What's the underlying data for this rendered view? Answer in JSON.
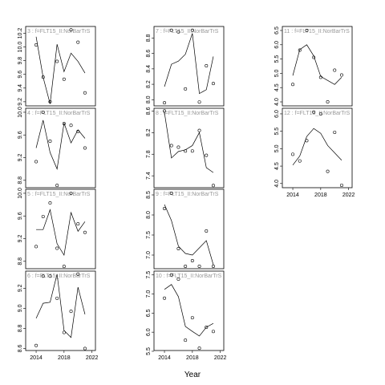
{
  "xlabel": "Year",
  "chart_data": [
    {
      "type": "scatter-line",
      "title": "3 : f=FLT15_II:NorBarTrS",
      "x": [
        2014,
        2015,
        2016,
        2017,
        2018,
        2019,
        2020,
        2021
      ],
      "series": [
        {
          "type": "scatter",
          "values": [
            10.03,
            9.56,
            9.2,
            9.79,
            9.53,
            10.25,
            10.07,
            9.33
          ]
        },
        {
          "type": "line",
          "values": [
            10.15,
            9.56,
            9.17,
            10.04,
            9.64,
            9.91,
            9.79,
            9.62
          ]
        }
      ],
      "xlim": [
        2012.5,
        2022.5
      ],
      "xticks": [
        2014,
        2018,
        2022
      ],
      "show_xtick_labels": false,
      "ylim": [
        9.14,
        10.3
      ],
      "yticks": [
        9.2,
        9.4,
        9.6,
        9.8,
        {
          "value": 10,
          "label": "10.0"
        },
        10.2
      ]
    },
    {
      "type": "scatter-line",
      "title": "4 : f=FLT15_II:NorBarTrS",
      "x": [
        2014,
        2015,
        2016,
        2017,
        2018,
        2019,
        2020,
        2021
      ],
      "series": [
        {
          "type": "scatter",
          "values": [
            9.13,
            10.0,
            9.49,
            8.71,
            9.8,
            9.77,
            9.66,
            9.37
          ]
        },
        {
          "type": "line",
          "values": [
            9.37,
            9.86,
            9.29,
            9.0,
            9.81,
            9.46,
            9.69,
            9.54
          ]
        }
      ],
      "xlim": [
        2012.5,
        2022.5
      ],
      "xticks": [
        2014,
        2018,
        2022
      ],
      "show_xtick_labels": false,
      "ylim": [
        8.67,
        10.07
      ],
      "yticks": [
        8.8,
        9.2,
        9.6,
        {
          "value": 10,
          "label": "10.0"
        }
      ]
    },
    {
      "type": "scatter-line",
      "title": "5 : f=FLT15_II:NorBarTrS",
      "x": [
        2014,
        2015,
        2016,
        2017,
        2018,
        2019,
        2020,
        2021
      ],
      "series": [
        {
          "type": "scatter",
          "values": [
            9.06,
            9.59,
            9.83,
            9.03,
            8.71,
            10.0,
            9.46,
            9.31
          ]
        },
        {
          "type": "line",
          "values": [
            9.36,
            9.36,
            9.71,
            9.11,
            8.91,
            9.66,
            9.33,
            9.5
          ]
        }
      ],
      "xlim": [
        2012.5,
        2022.5
      ],
      "xticks": [
        2014,
        2018,
        2022
      ],
      "show_xtick_labels": false,
      "ylim": [
        8.67,
        10.07
      ],
      "yticks": [
        8.8,
        9.2,
        9.6,
        {
          "value": 10,
          "label": "10.0"
        }
      ]
    },
    {
      "type": "scatter-line",
      "title": "6 : f=FLT15_II:NorBarTrS",
      "x": [
        2014,
        2015,
        2016,
        2017,
        2018,
        2019,
        2020,
        2021
      ],
      "series": [
        {
          "type": "scatter",
          "values": [
            8.63,
            9.32,
            9.32,
            9.1,
            8.76,
            8.97,
            9.34,
            8.6
          ]
        },
        {
          "type": "line",
          "values": [
            8.9,
            9.05,
            9.06,
            9.34,
            8.78,
            8.71,
            9.21,
            8.94
          ]
        }
      ],
      "xlim": [
        2012.5,
        2022.5
      ],
      "xticks": [
        2014,
        2018,
        2022
      ],
      "show_xtick_labels": true,
      "ylim": [
        8.58,
        9.37
      ],
      "yticks": [
        8.6,
        8.8,
        {
          "value": 9,
          "label": "9.0"
        },
        9.2
      ]
    },
    {
      "type": "scatter-line",
      "title": "7 : f=FLT15_II:NorBarTrS",
      "x": [
        2014,
        2015,
        2016,
        2017,
        2018,
        2019,
        2020,
        2021
      ],
      "series": [
        {
          "type": "scatter",
          "values": [
            7.96,
            8.9,
            8.88,
            8.14,
            8.9,
            7.97,
            8.44,
            8.21
          ]
        },
        {
          "type": "line",
          "values": [
            8.17,
            8.46,
            8.5,
            8.59,
            8.86,
            8.08,
            8.13,
            8.56
          ]
        }
      ],
      "xlim": [
        2012.5,
        2022.5
      ],
      "xticks": [
        2014,
        2018,
        2022
      ],
      "show_xtick_labels": false,
      "ylim": [
        7.92,
        8.95
      ],
      "yticks": [
        {
          "value": 8,
          "label": "8.0"
        },
        8.2,
        8.4,
        8.6,
        8.8
      ]
    },
    {
      "type": "scatter-line",
      "title": "8 : f=FLT15_II:NorBarTrS",
      "x": [
        2014,
        2015,
        2016,
        2017,
        2018,
        2019,
        2020,
        2021
      ],
      "series": [
        {
          "type": "scatter",
          "values": [
            8.6,
            7.96,
            7.93,
            7.86,
            7.86,
            8.24,
            7.78,
            7.22
          ]
        },
        {
          "type": "line",
          "values": [
            8.57,
            7.73,
            7.85,
            7.88,
            7.96,
            8.2,
            7.55,
            7.46
          ]
        }
      ],
      "xlim": [
        2012.5,
        2022.5
      ],
      "xticks": [
        2014,
        2018,
        2022
      ],
      "show_xtick_labels": false,
      "ylim": [
        7.18,
        8.65
      ],
      "yticks": [
        7.4,
        7.8,
        8.2,
        8.6
      ]
    },
    {
      "type": "scatter-line",
      "title": "9 : f=FLT15_II:NorBarTrS",
      "x": [
        2014,
        2015,
        2016,
        2017,
        2018,
        2019,
        2020,
        2021
      ],
      "series": [
        {
          "type": "scatter",
          "values": [
            8.16,
            8.54,
            7.16,
            6.72,
            6.86,
            6.72,
            7.6,
            6.72
          ]
        },
        {
          "type": "line",
          "values": [
            8.26,
            7.86,
            7.22,
            7.04,
            7.0,
            7.18,
            7.36,
            6.76
          ]
        }
      ],
      "xlim": [
        2012.5,
        2022.5
      ],
      "xticks": [
        2014,
        2018,
        2022
      ],
      "show_xtick_labels": false,
      "ylim": [
        6.66,
        8.64
      ],
      "yticks": [
        {
          "value": 7,
          "label": "7.0"
        },
        7.5,
        {
          "value": 8,
          "label": "8.0"
        },
        8.5
      ]
    },
    {
      "type": "scatter-line",
      "title": "10 : f=FLT15_II:NorBarTrS",
      "x": [
        2014,
        2015,
        2016,
        2017,
        2018,
        2019,
        2020,
        2021
      ],
      "series": [
        {
          "type": "scatter",
          "values": [
            6.89,
            7.5,
            7.39,
            5.79,
            6.38,
            5.58,
            6.13,
            6.02
          ]
        },
        {
          "type": "line",
          "values": [
            7.12,
            7.25,
            6.93,
            6.15,
            6.02,
            5.9,
            6.13,
            6.23
          ]
        }
      ],
      "xlim": [
        2012.5,
        2022.5
      ],
      "xticks": [
        2014,
        2018,
        2022
      ],
      "show_xtick_labels": true,
      "ylim": [
        5.52,
        7.6
      ],
      "yticks": [
        5.5,
        {
          "value": 6,
          "label": "6.0"
        },
        6.5,
        {
          "value": 7,
          "label": "7.0"
        },
        7.5
      ]
    },
    {
      "type": "scatter-line",
      "title": "11 : f=FLT15_II:NorBarTrS",
      "x": [
        2014,
        2015,
        2016,
        2017,
        2018,
        2019,
        2020,
        2021
      ],
      "series": [
        {
          "type": "scatter",
          "values": [
            4.61,
            5.81,
            6.5,
            5.56,
            4.86,
            4.0,
            5.11,
            4.94
          ]
        },
        {
          "type": "line",
          "values": [
            4.92,
            5.83,
            6.0,
            5.61,
            4.89,
            4.75,
            4.61,
            4.86
          ]
        }
      ],
      "xlim": [
        2012.5,
        2022.5
      ],
      "xticks": [
        2014,
        2018,
        2022
      ],
      "show_xtick_labels": false,
      "ylim": [
        3.86,
        6.64
      ],
      "yticks": [
        {
          "value": 4,
          "label": "4.0"
        },
        4.5,
        {
          "value": 5,
          "label": "5.0"
        },
        5.5,
        {
          "value": 6,
          "label": "6.0"
        },
        6.5
      ]
    },
    {
      "type": "scatter-line",
      "title": "12 : f=FLT15_II:NorBarTrS",
      "x": [
        2014,
        2015,
        2016,
        2017,
        2018,
        2019,
        2020,
        2021
      ],
      "series": [
        {
          "type": "scatter",
          "values": [
            4.84,
            4.65,
            5.23,
            6.05,
            6.0,
            4.35,
            5.47,
            3.95
          ]
        },
        {
          "type": "line",
          "values": [
            4.53,
            4.79,
            5.35,
            5.58,
            5.44,
            5.09,
            4.88,
            4.67
          ]
        }
      ],
      "xlim": [
        2012.5,
        2022.5
      ],
      "xticks": [
        2014,
        2018,
        2022
      ],
      "show_xtick_labels": true,
      "ylim": [
        3.88,
        6.16
      ],
      "yticks": [
        {
          "value": 4,
          "label": "4.0"
        },
        4.5,
        {
          "value": 5,
          "label": "5.0"
        },
        5.5,
        {
          "value": 6,
          "label": "6.0"
        }
      ]
    }
  ]
}
